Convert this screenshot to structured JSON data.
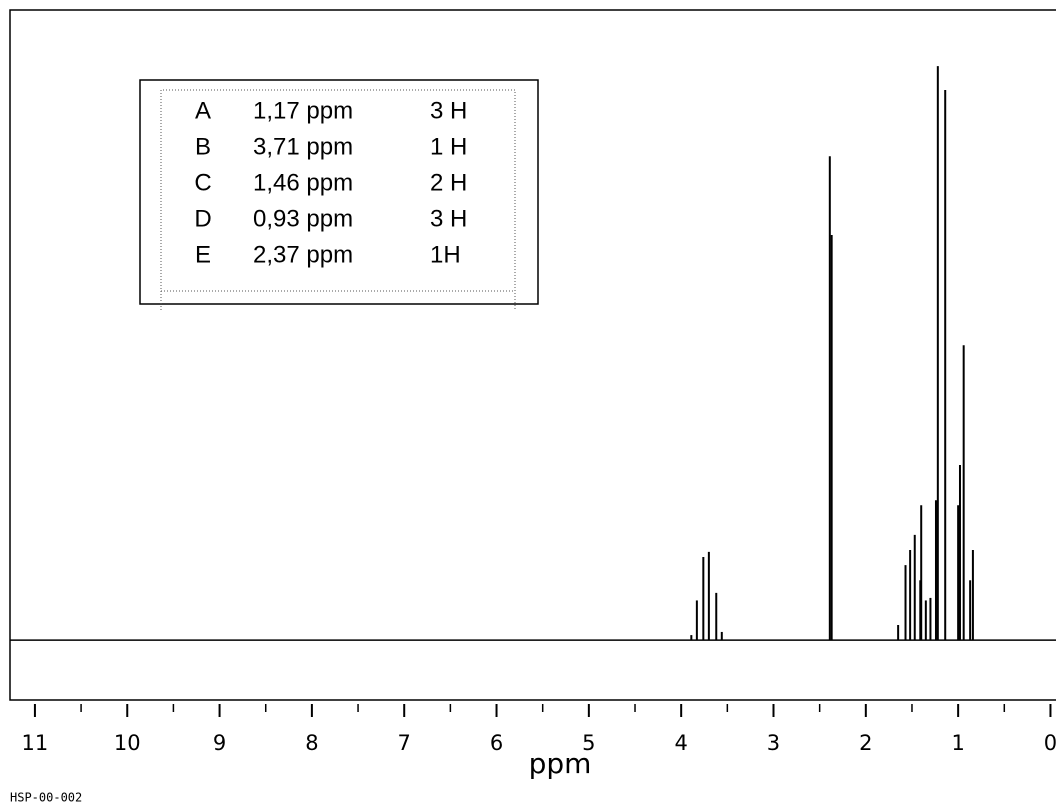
{
  "chart_data": {
    "type": "spectrum",
    "x_label": "ppm",
    "note": "HSP-00-002",
    "annotation_table": [
      [
        "A",
        "1,17 ppm",
        "3 H"
      ],
      [
        "B",
        "3,71 ppm",
        "1 H"
      ],
      [
        "C",
        "1,46 ppm",
        "2 H"
      ],
      [
        "D",
        "0,93 ppm",
        "3 H"
      ],
      [
        "E",
        "2,37 ppm",
        "1H"
      ]
    ],
    "x": [
      3.89,
      3.83,
      3.76,
      3.7,
      3.62,
      3.56,
      2.39,
      2.37,
      1.65,
      1.57,
      1.52,
      1.47,
      1.41,
      1.4,
      1.35,
      1.3,
      1.24,
      1.22,
      1.14,
      1.0,
      0.98,
      0.94,
      0.87,
      0.84
    ],
    "values": [
      0.8,
      6.3,
      13.2,
      14.0,
      7.5,
      1.3,
      76.8,
      64.3,
      2.4,
      11.9,
      14.3,
      16.7,
      9.5,
      21.4,
      6.3,
      6.7,
      22.2,
      91.1,
      87.3,
      21.4,
      27.8,
      46.8,
      9.5,
      14.3
    ],
    "color": "#000000",
    "xlim": [
      11.27,
      -0.06
    ],
    "ylim": [
      -9.5,
      100
    ],
    "xticks": [
      11,
      10,
      9,
      8,
      7,
      6,
      5,
      4,
      3,
      2,
      1,
      0
    ],
    "xminorticks": [
      10.5,
      9.5,
      8.5,
      7.5,
      6.5,
      5.5,
      4.5,
      3.5,
      2.5,
      1.5,
      0.5
    ]
  }
}
